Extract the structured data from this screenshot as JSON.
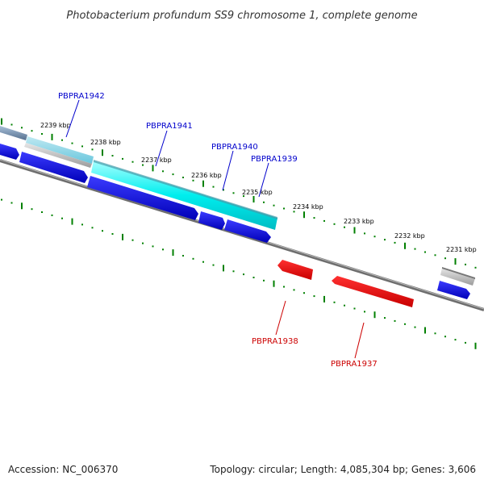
{
  "title": "Photobacterium profundum SS9 chromosome 1, complete genome",
  "footer": {
    "accession": "Accession: NC_006370",
    "summary": "Topology: circular; Length: 4,085,304 bp; Genes: 3,606"
  },
  "ticks": {
    "kbp_2239": "2239 kbp",
    "kbp_2238": "2238 kbp",
    "kbp_2237": "2237 kbp",
    "kbp_2236": "2236 kbp",
    "kbp_2235": "2235 kbp",
    "kbp_2234": "2234 kbp",
    "kbp_2233": "2233 kbp",
    "kbp_2232": "2232 kbp",
    "kbp_2231": "2231 kbp"
  },
  "genes": {
    "pbpra1942": "PBPRA1942",
    "pbpra1941": "PBPRA1941",
    "pbpra1940": "PBPRA1940",
    "pbpra1939": "PBPRA1939",
    "pbpra1938": "PBPRA1938",
    "pbpra1937": "PBPRA1937"
  },
  "colors": {
    "forward_label": "#0000cc",
    "reverse_label": "#cc0000",
    "forward_cds": "#0000ee",
    "reverse_cds": "#ee0000",
    "gene_band": "#00e5ee",
    "tick_mark": "#008000",
    "backbone": "#808080",
    "other_feature": "#b0b0b0"
  }
}
